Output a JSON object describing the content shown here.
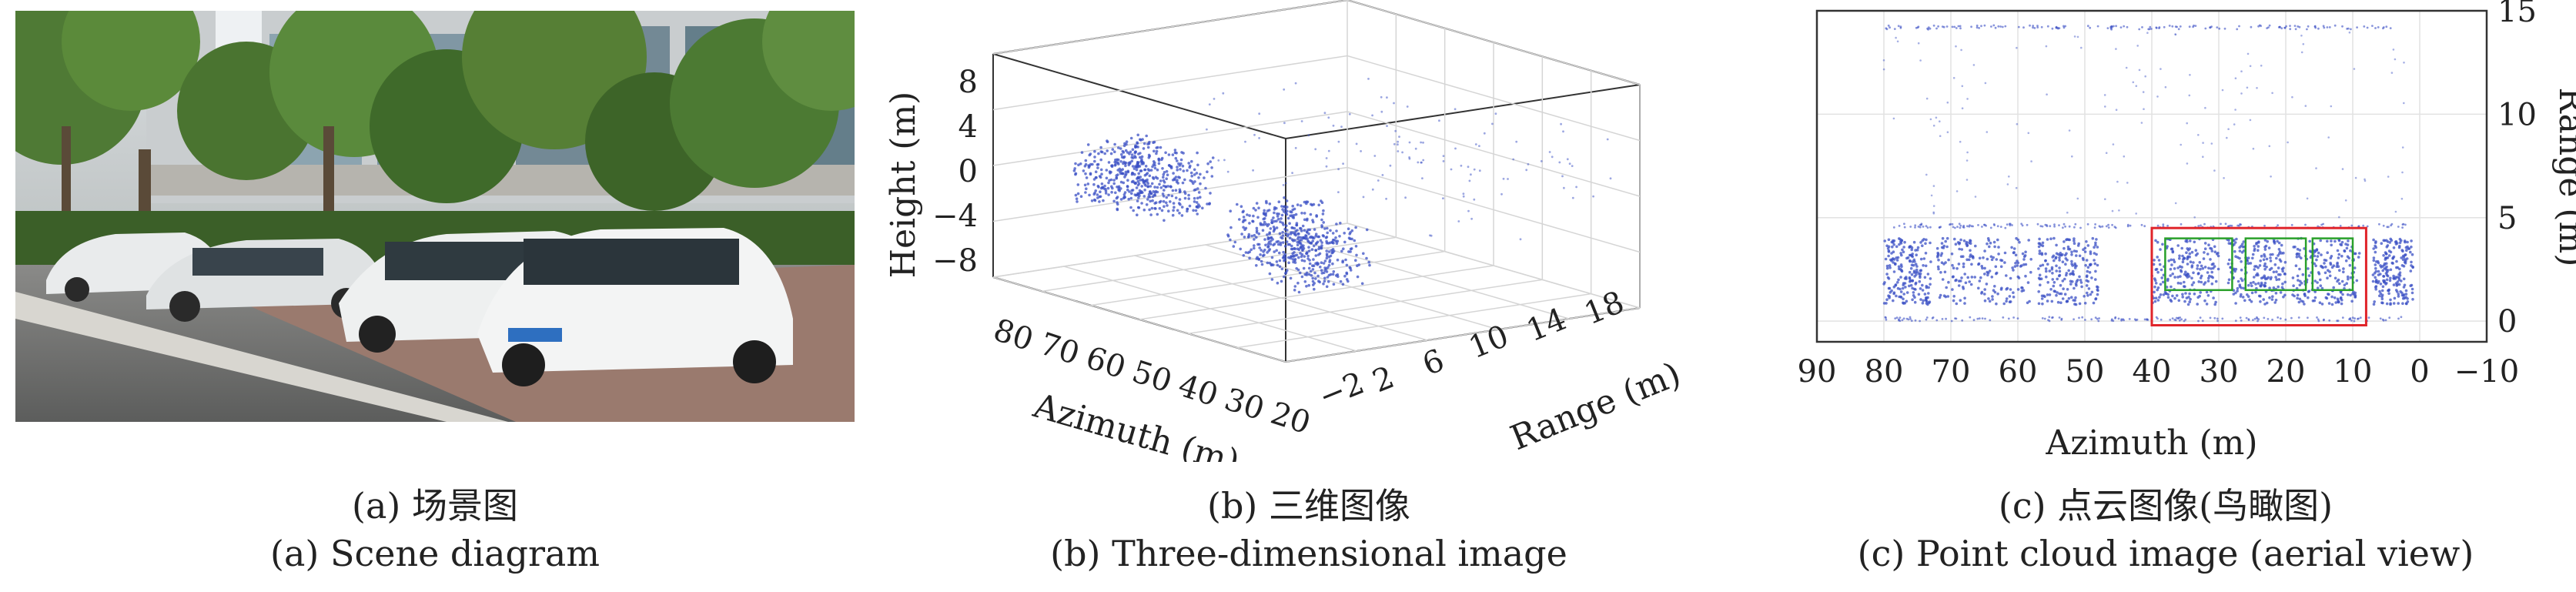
{
  "panel_a": {
    "caption_cn": "(a) 场景图",
    "caption_en": "(a) Scene diagram",
    "image": "photo of white cars parked along a tree-lined street beside a building"
  },
  "panel_b": {
    "caption_cn": "(b) 三维图像",
    "caption_en": "(b) Three-dimensional image",
    "zlabel": "Height (m)",
    "xlabel": "Azimuth (m)",
    "ylabel": "Range (m)",
    "zticks": [
      "8",
      "4",
      "0",
      "−4",
      "−8"
    ],
    "xticks": [
      "80",
      "70",
      "60",
      "50",
      "40",
      "30",
      "20"
    ],
    "yticks": [
      "−2",
      "2",
      "6",
      "10",
      "14",
      "18"
    ]
  },
  "panel_c": {
    "caption_cn": "(c) 点云图像(鸟瞰图)",
    "caption_en": "(c) Point cloud image (aerial view)",
    "xlabel": "Azimuth (m)",
    "ylabel": "Range (m)",
    "xticks": [
      "90",
      "80",
      "70",
      "60",
      "50",
      "40",
      "30",
      "20",
      "10",
      "0",
      "−10"
    ],
    "yticks": [
      "15",
      "10",
      "5",
      "0"
    ]
  },
  "chart_data": [
    {
      "type": "scatter",
      "title": "",
      "xlabel": "Azimuth (m)",
      "ylabel": "Range (m)",
      "zlabel": "Height (m)",
      "xlim": [
        80,
        20
      ],
      "ylim": [
        -2,
        18
      ],
      "zlim": [
        -8,
        8
      ],
      "series": [
        {
          "color": "#3a4fc4",
          "clusters": [
            {
              "x": [
                72,
                66
              ],
              "y": [
                0,
                4
              ],
              "z": [
                -2,
                2
              ]
            },
            {
              "x": [
                64,
                55
              ],
              "y": [
                0,
                4
              ],
              "z": [
                -2,
                2
              ]
            },
            {
              "x": [
                40,
                32
              ],
              "y": [
                0,
                4
              ],
              "z": [
                -3,
                1
              ]
            },
            {
              "x": [
                32,
                24
              ],
              "y": [
                0,
                4
              ],
              "z": [
                -4,
                0
              ]
            }
          ]
        }
      ]
    },
    {
      "type": "scatter",
      "title": "",
      "xlabel": "Azimuth (m)",
      "ylabel": "Range (m)",
      "xlim": [
        90,
        -10
      ],
      "ylim": [
        -1,
        15
      ],
      "series": [
        {
          "color": "#3a4fc4",
          "clusters": [
            {
              "x": [
                80,
                73
              ],
              "y": [
                0.8,
                4
              ]
            },
            {
              "x": [
                72,
                58
              ],
              "y": [
                0.8,
                4
              ]
            },
            {
              "x": [
                57,
                48
              ],
              "y": [
                0.8,
                4
              ]
            },
            {
              "x": [
                40,
                30
              ],
              "y": [
                0.8,
                4
              ]
            },
            {
              "x": [
                29,
                20
              ],
              "y": [
                0.8,
                4
              ]
            },
            {
              "x": [
                19,
                9
              ],
              "y": [
                0.8,
                4
              ]
            },
            {
              "x": [
                7,
                1
              ],
              "y": [
                0.8,
                4
              ]
            }
          ],
          "lines": [
            {
              "y": 14.2,
              "x": [
                80,
                2
              ]
            },
            {
              "y": 4.6,
              "x": [
                80,
                2
              ]
            },
            {
              "y": 0.1,
              "x": [
                80,
                2
              ]
            }
          ]
        }
      ],
      "annotations": [
        {
          "kind": "rect",
          "color": "#e0242a",
          "x": [
            40,
            8
          ],
          "y": [
            -0.2,
            4.5
          ]
        },
        {
          "kind": "rect",
          "color": "#2aa02a",
          "x": [
            38,
            28
          ],
          "y": [
            1.5,
            4
          ]
        },
        {
          "kind": "rect",
          "color": "#2aa02a",
          "x": [
            26,
            17
          ],
          "y": [
            1.5,
            4
          ]
        },
        {
          "kind": "rect",
          "color": "#2aa02a",
          "x": [
            16,
            10
          ],
          "y": [
            1.5,
            4
          ]
        }
      ]
    }
  ]
}
